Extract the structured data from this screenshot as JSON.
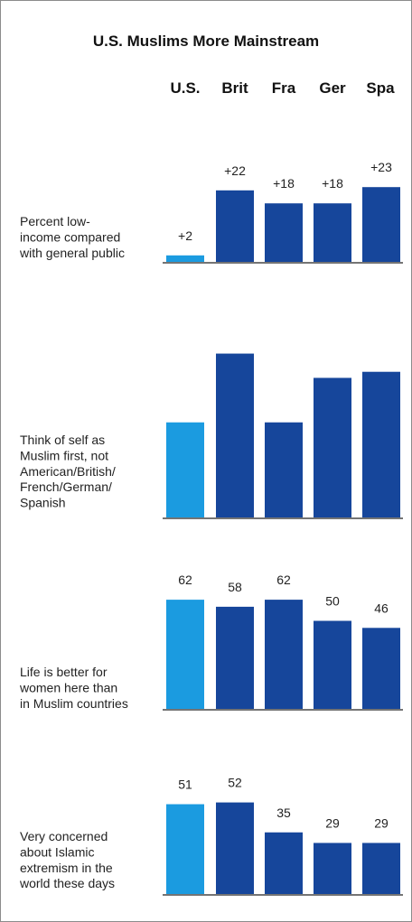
{
  "title": "U.S. Muslims More Mainstream",
  "chart_data": {
    "type": "bar",
    "categories": [
      "U.S.",
      "Brit",
      "Fra",
      "Ger",
      "Spa"
    ],
    "colors": {
      "us": "#1b9be0",
      "other": "#16469b",
      "axis": "#222222"
    },
    "panels": [
      {
        "label_lines": [
          "Percent low-",
          "income compared",
          "with general public"
        ],
        "values": [
          2,
          22,
          18,
          18,
          23
        ],
        "value_labels": [
          "+2",
          "+22",
          "+18",
          "+18",
          "+23"
        ]
      },
      {
        "label_lines": [
          "Think of self as",
          "Muslim first, not",
          "American/British/",
          "French/German/",
          "Spanish"
        ],
        "values": [
          47,
          81,
          47,
          69,
          72
        ],
        "value_labels": [
          "",
          "",
          "",
          "",
          ""
        ]
      },
      {
        "label_lines": [
          "Life is better for",
          "women here than",
          "in Muslim countries"
        ],
        "values": [
          62,
          58,
          62,
          50,
          46
        ],
        "value_labels": [
          "62",
          "58",
          "62",
          "50",
          "46"
        ]
      },
      {
        "label_lines": [
          "Very concerned",
          "about Islamic",
          "extremism in the",
          "world these days"
        ],
        "values": [
          51,
          52,
          35,
          29,
          29
        ],
        "value_labels": [
          "51",
          "52",
          "35",
          "29",
          "29"
        ]
      }
    ]
  }
}
